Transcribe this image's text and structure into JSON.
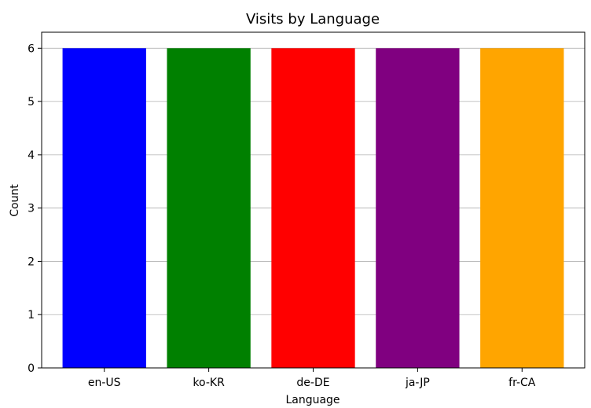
{
  "chart_data": {
    "type": "bar",
    "title": "Visits by Language",
    "xlabel": "Language",
    "ylabel": "Count",
    "categories": [
      "en-US",
      "ko-KR",
      "de-DE",
      "ja-JP",
      "fr-CA"
    ],
    "values": [
      6,
      6,
      6,
      6,
      6
    ],
    "colors": [
      "#0000ff",
      "#008000",
      "#ff0000",
      "#800080",
      "#ffa500"
    ],
    "ylim": [
      0,
      6.3
    ],
    "yticks": [
      0,
      1,
      2,
      3,
      4,
      5,
      6
    ],
    "grid": "y"
  }
}
